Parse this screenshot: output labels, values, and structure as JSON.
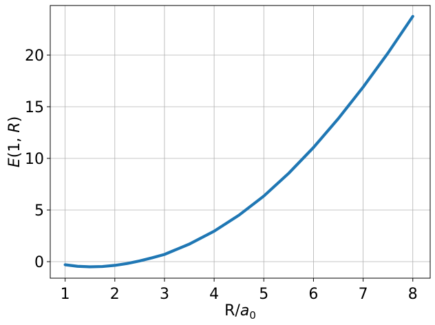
{
  "chart_data": {
    "type": "line",
    "title": "",
    "xlabel": {
      "text_prefix": "R/",
      "italic": "a",
      "subscript": "0"
    },
    "ylabel": {
      "italic_func": "E",
      "open": "(1, ",
      "italic_arg": "R",
      "close": ")"
    },
    "xlim": [
      0.7,
      8.35
    ],
    "ylim": [
      -1.6,
      24.8
    ],
    "xticks": [
      1,
      2,
      3,
      4,
      5,
      6,
      7,
      8
    ],
    "yticks": [
      0,
      5,
      10,
      15,
      20
    ],
    "grid": true,
    "color": "#1f77b4",
    "series": [
      {
        "x": [
          1.0,
          1.25,
          1.5,
          1.75,
          2.0,
          2.25,
          2.5,
          2.75,
          3.0,
          3.5,
          4.0,
          4.5,
          5.0,
          5.5,
          6.0,
          6.5,
          7.0,
          7.5,
          8.0
        ],
        "y": [
          -0.3,
          -0.45,
          -0.5,
          -0.47,
          -0.36,
          -0.18,
          0.07,
          0.37,
          0.7,
          1.7,
          2.95,
          4.5,
          6.35,
          8.55,
          11.05,
          13.85,
          16.9,
          20.2,
          23.75
        ]
      }
    ]
  }
}
